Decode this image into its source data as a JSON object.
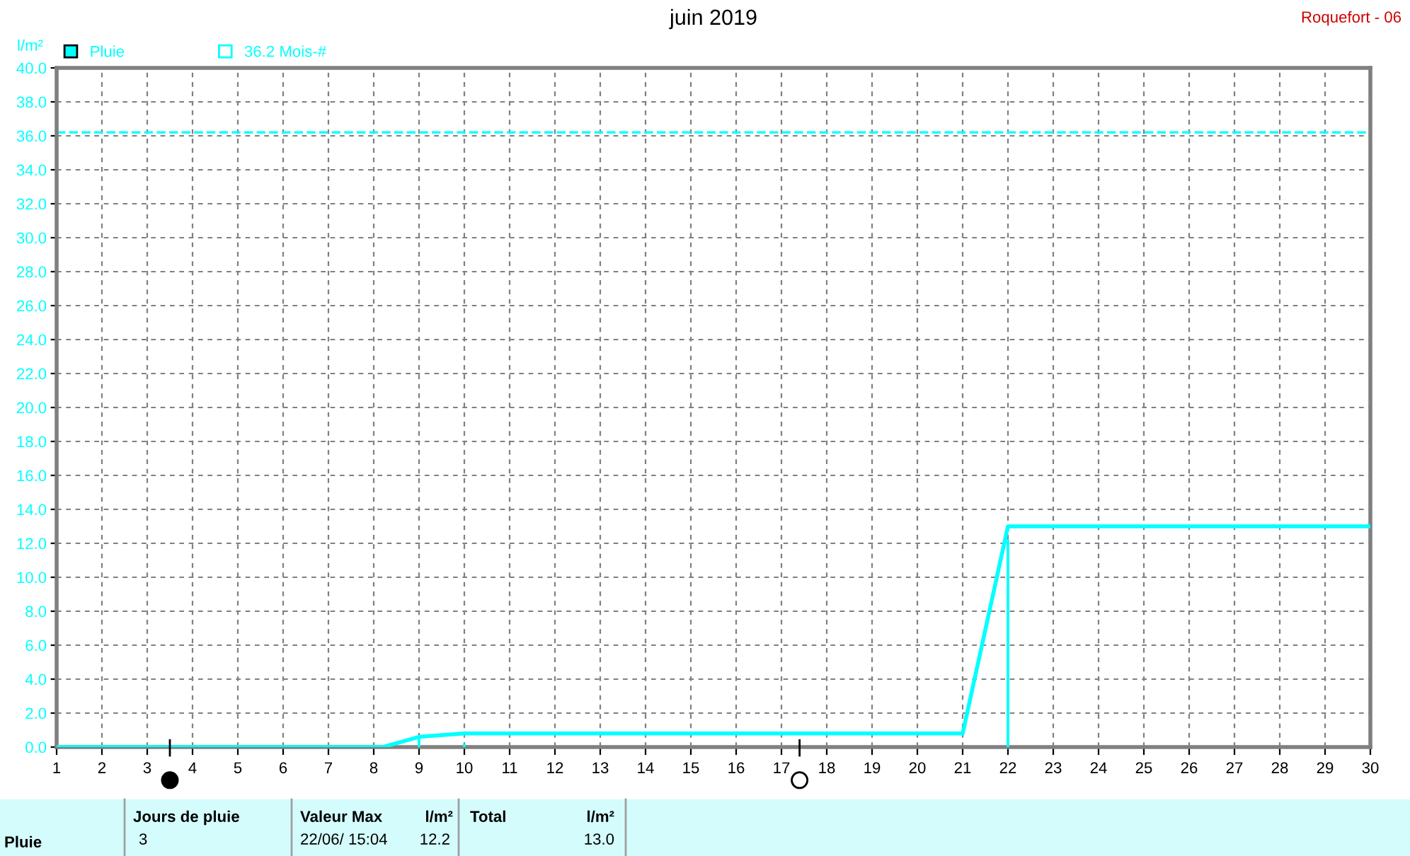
{
  "chart_data": {
    "type": "line",
    "title": "juin 2019",
    "ylabel": "l/m²",
    "series": [
      {
        "name": "Pluie",
        "color": "#00ffff",
        "x": [
          1,
          8.2,
          9,
          10,
          21,
          22,
          30
        ],
        "values": [
          0,
          0,
          0.6,
          0.8,
          0.8,
          13.0,
          13.0
        ]
      },
      {
        "type": "bar",
        "color": "#00ffff",
        "x": [
          9,
          10,
          22
        ],
        "values": [
          0.6,
          0.2,
          12.2
        ]
      }
    ],
    "ref_lines": [
      {
        "axis": "y",
        "value": 36.2,
        "label": "36.2 Mois-#",
        "color": "#00ffff",
        "line_style": "dashed"
      }
    ],
    "xlim": [
      1,
      30
    ],
    "xticks": [
      1,
      2,
      3,
      4,
      5,
      6,
      7,
      8,
      9,
      10,
      11,
      12,
      13,
      14,
      15,
      16,
      17,
      18,
      19,
      20,
      21,
      22,
      23,
      24,
      25,
      26,
      27,
      28,
      29,
      30
    ],
    "ylim": [
      0,
      40
    ],
    "yticks": [
      {
        "value": 0,
        "label": "0.0"
      },
      {
        "value": 2,
        "label": "2.0"
      },
      {
        "value": 4,
        "label": "4.0"
      },
      {
        "value": 6,
        "label": "6.0"
      },
      {
        "value": 8,
        "label": "8.0"
      },
      {
        "value": 10,
        "label": "10.0"
      },
      {
        "value": 12,
        "label": "12.0"
      },
      {
        "value": 14,
        "label": "14.0"
      },
      {
        "value": 16,
        "label": "16.0"
      },
      {
        "value": 18,
        "label": "18.0"
      },
      {
        "value": 20,
        "label": "20.0"
      },
      {
        "value": 22,
        "label": "22.0"
      },
      {
        "value": 24,
        "label": "24.0"
      },
      {
        "value": 26,
        "label": "26.0"
      },
      {
        "value": 28,
        "label": "28.0"
      },
      {
        "value": 30,
        "label": "30.0"
      },
      {
        "value": 32,
        "label": "32.0"
      },
      {
        "value": 34,
        "label": "34.0"
      },
      {
        "value": 36,
        "label": "36.0"
      },
      {
        "value": 38,
        "label": "38.0"
      },
      {
        "value": 40,
        "label": "40.0"
      }
    ],
    "grid": true,
    "legend": "top left",
    "annotations": [
      "Roquefort - 06",
      "Pluie",
      "Jours de pluie",
      "3",
      "Valeur Max",
      "l/m²",
      "22/06/ 15:04",
      "12.2",
      "Total",
      "l/m²",
      "13.0"
    ]
  }
}
